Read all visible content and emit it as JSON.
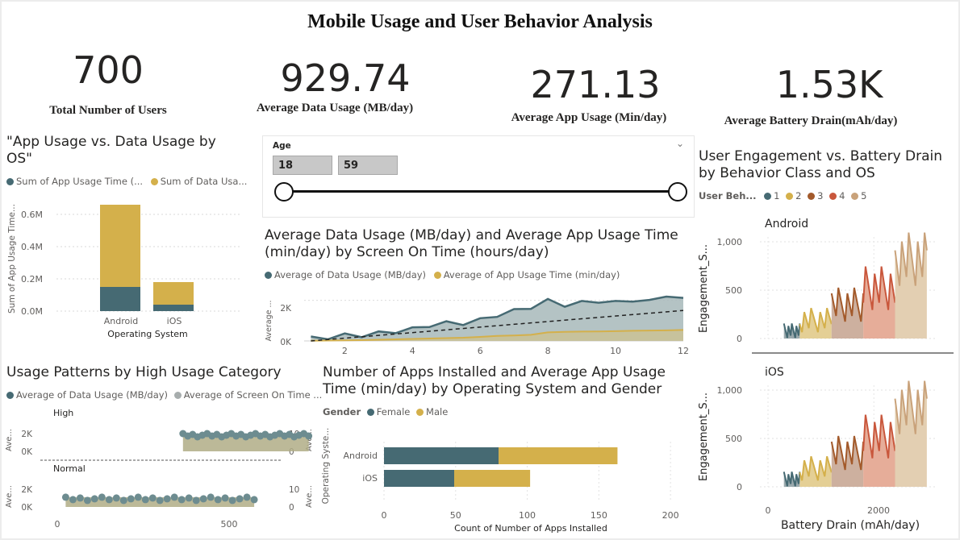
{
  "title": "Mobile Usage and User Behavior Analysis",
  "kpis": [
    {
      "value": "700",
      "label": "Total Number of Users"
    },
    {
      "value": "929.74",
      "label": "Average Data Usage (MB/day)"
    },
    {
      "value": "271.13",
      "label": "Average App Usage (Min/day)"
    },
    {
      "value": "1.53K",
      "label": "Average Battery Drain(mAh/day)"
    }
  ],
  "colors": {
    "teal": "#466a73",
    "gold": "#d4b04b",
    "grey": "#a7adad"
  },
  "slicer": {
    "label": "Age",
    "min": "18",
    "max": "59",
    "chevron_icon": "chevron-down-icon"
  },
  "chart1": {
    "title_line1": "\"App Usage vs. Data Usage by",
    "title_line2": "OS\"",
    "legend1": "Sum of App Usage Time (...",
    "legend2": "Sum of Data Usa...",
    "ylabel": "Sum of App Usage Time...",
    "xlabel": "Operating System",
    "ticks": [
      "0.6M",
      "0.4M",
      "0.2M",
      "0.0M"
    ]
  },
  "chart2": {
    "title_line1": "Average Data Usage (MB/day) and Average App Usage Time",
    "title_line2": "(min/day) by Screen On Time (hours/day)",
    "legend1": "Average of Data Usage (MB/day)",
    "legend2": "Average of App Usage Time (min/day)",
    "ylabel": "Average ...",
    "yticks": [
      "2K",
      "0K"
    ],
    "xticks": [
      "2",
      "4",
      "6",
      "8",
      "10",
      "12"
    ]
  },
  "chart3": {
    "title_line1": "User Engagement vs. Battery Drain",
    "title_line2": "by Behavior Class and OS",
    "legend_title": "User Beh...",
    "classes": [
      "1",
      "2",
      "3",
      "4",
      "5"
    ],
    "panel1": "Android",
    "panel2": "iOS",
    "ylabel": "Engagement_S...",
    "yticks": [
      "1,000",
      "500",
      "0"
    ],
    "xticks": [
      "0",
      "2000"
    ],
    "xlabel": "Battery Drain (mAh/day)"
  },
  "chart4": {
    "title": "Usage Patterns by High Usage Category",
    "legend1": "Average of Data Usage (MB/day)",
    "legend2": "Average of Screen On Time ...",
    "panel1": "High",
    "panel2": "Normal",
    "ylabel_left": "Ave...",
    "ylabel_right": "Ave...",
    "yticks_left": [
      "2K",
      "0K"
    ],
    "yticks_right": [
      "10",
      "0"
    ],
    "xticks": [
      "0",
      "500"
    ]
  },
  "chart5": {
    "title_line1": "Number of Apps Installed and Average App Usage",
    "title_line2": "Time (min/day) by Operating System and Gender",
    "legend_title": "Gender",
    "legend1": "Female",
    "legend2": "Male",
    "ylabel": "Operating Syste...",
    "xlabel": "Count of Number of Apps Installed",
    "xticks": [
      "0",
      "50",
      "100",
      "150",
      "200"
    ]
  },
  "chart_data": [
    {
      "type": "bar",
      "title": "\"App Usage vs. Data Usage by OS\"",
      "categories": [
        "Android",
        "iOS"
      ],
      "series": [
        {
          "name": "Sum of App Usage Time (...",
          "values": [
            0.15,
            0.04
          ]
        },
        {
          "name": "Sum of Data Usa...",
          "values": [
            0.51,
            0.14
          ]
        }
      ],
      "stacked": true,
      "xlabel": "Operating System",
      "ylabel": "Sum of App Usage Time...",
      "ylim": [
        0,
        0.7
      ],
      "unit": "M"
    },
    {
      "type": "line",
      "title": "Average Data Usage (MB/day) and Average App Usage Time (min/day) by Screen On Time (hours/day)",
      "x": [
        1,
        1.5,
        2,
        2.5,
        3,
        3.5,
        4,
        4.5,
        5,
        5.5,
        6,
        6.5,
        7,
        7.5,
        8,
        8.5,
        9,
        9.5,
        10,
        10.5,
        11,
        11.5,
        12
      ],
      "series": [
        {
          "name": "Average of Data Usage (MB/day)",
          "values": [
            100,
            200,
            250,
            300,
            350,
            500,
            550,
            800,
            850,
            900,
            1000,
            1300,
            1450,
            1700,
            1950,
            1800,
            1850,
            2000,
            1850,
            2050,
            1900,
            2300,
            2000
          ]
        },
        {
          "name": "Average of App Usage Time (min/day)",
          "values": [
            10,
            20,
            30,
            40,
            60,
            80,
            100,
            120,
            140,
            160,
            200,
            250,
            270,
            300,
            420,
            450,
            460,
            470,
            480,
            500,
            510,
            520,
            540
          ]
        }
      ],
      "ylim": [
        0,
        2500
      ],
      "xlim": [
        0.8,
        12
      ]
    },
    {
      "type": "area",
      "title": "User Engagement vs. Battery Drain by Behavior Class and OS",
      "panels": [
        "Android",
        "iOS"
      ],
      "series": [
        {
          "name": "1",
          "x_range": [
            300,
            600
          ],
          "level": 80
        },
        {
          "name": "2",
          "x_range": [
            600,
            1200
          ],
          "level": 190
        },
        {
          "name": "3",
          "x_range": [
            1200,
            1800
          ],
          "level": 350
        },
        {
          "name": "4",
          "x_range": [
            1800,
            2400
          ],
          "level": 520
        },
        {
          "name": "5",
          "x_range": [
            2400,
            3000
          ],
          "level": 820
        }
      ],
      "xlabel": "Battery Drain (mAh/day)",
      "ylim": [
        0,
        1050
      ],
      "xlim": [
        0,
        3200
      ]
    },
    {
      "type": "area",
      "title": "Usage Patterns by High Usage Category",
      "panels": [
        "High",
        "Normal"
      ],
      "series": [
        {
          "name": "Average of Data Usage (MB/day)",
          "high_x_range": [
            300,
            600
          ],
          "high_level": 1800,
          "normal_x_range": [
            20,
            470
          ],
          "normal_level": 600
        },
        {
          "name": "Average of Screen On Time ...",
          "high_level": 8,
          "normal_level": 3
        }
      ],
      "xlim": [
        0,
        560
      ]
    },
    {
      "type": "bar",
      "orientation": "horizontal",
      "title": "Number of Apps Installed and Average App Usage Time (min/day) by Operating System and Gender",
      "categories": [
        "Android",
        "iOS"
      ],
      "series": [
        {
          "name": "Female",
          "values": [
            80,
            49
          ]
        },
        {
          "name": "Male",
          "values": [
            83,
            53
          ]
        }
      ],
      "stacked": true,
      "xlabel": "Count of Number of Apps Installed",
      "xlim": [
        0,
        205
      ]
    }
  ]
}
